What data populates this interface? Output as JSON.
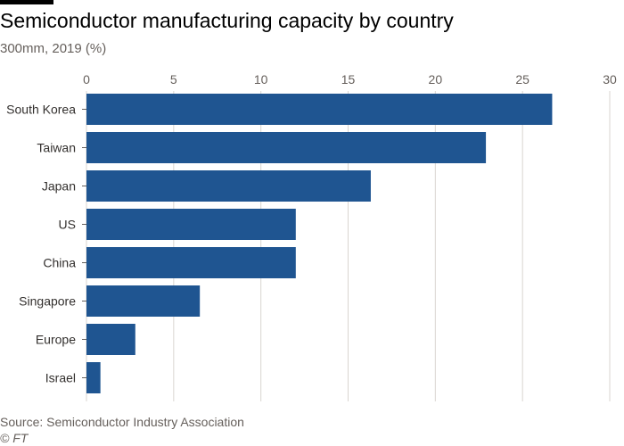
{
  "header": {
    "title": "Semiconductor manufacturing capacity by country",
    "subtitle": "300mm, 2019 (%)"
  },
  "footer": {
    "source": "Source: Semiconductor Industry Association",
    "copyright": "© FT"
  },
  "chart_data": {
    "type": "bar",
    "orientation": "horizontal",
    "categories": [
      "South Korea",
      "Taiwan",
      "Japan",
      "US",
      "China",
      "Singapore",
      "Europe",
      "Israel"
    ],
    "values": [
      26.7,
      22.9,
      16.3,
      12.0,
      12.0,
      6.5,
      2.8,
      0.8
    ],
    "xlim": [
      0,
      30
    ],
    "xticks": [
      0,
      5,
      10,
      15,
      20,
      25,
      30
    ],
    "tick_position": "top",
    "grid": true,
    "bar_color": "#1f5591",
    "grid_color": "#d9d5d0"
  }
}
